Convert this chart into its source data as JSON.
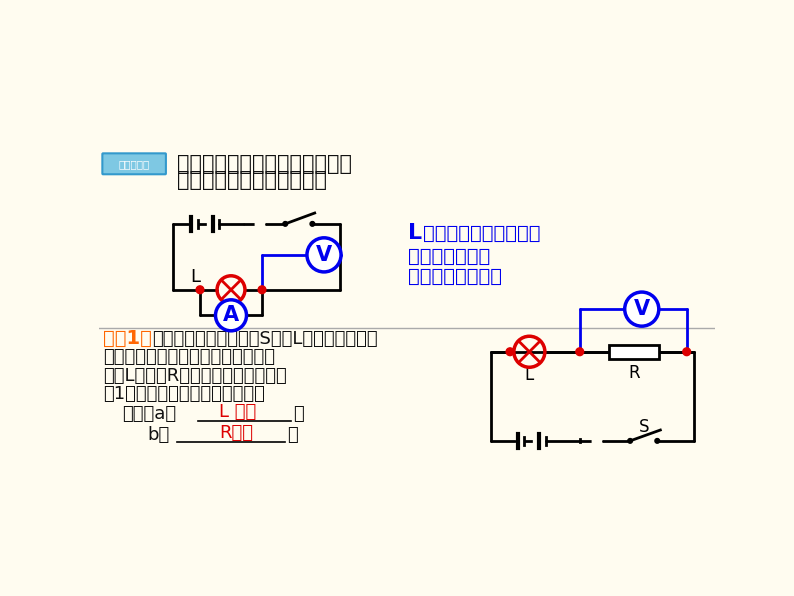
{
  "bg_color": "#FFFCF0",
  "title_text1": "如果电流表、电压表互换位置，",
  "title_text2": "合上开关，有何现象发生？",
  "result_text1_L": "L",
  "result_text1_rest": "灯不亮。电流表为零。",
  "result_text2": "电压表有示数。",
  "result_text3": "此时测电源电压。",
  "example_label": "【例1】",
  "example_text1": "如图电路中，闭合开关S，灯L不亮，电压表有",
  "example_text2": "示数。已知电路中各处均接触良好，",
  "example_text3": "除灯L和电阻R外，其余元件均完好。",
  "example_text4": "（1）请判断该电路中存在的故障",
  "example_text5a": "可能是a、",
  "example_text5b": "L 短路",
  "example_text5c": "；",
  "example_text6a": "b、",
  "example_text6b": "R开路",
  "example_text6c": "。",
  "blue_color": "#0000EE",
  "red_color": "#DD0000",
  "black_color": "#111111",
  "orange_color": "#FF6600"
}
